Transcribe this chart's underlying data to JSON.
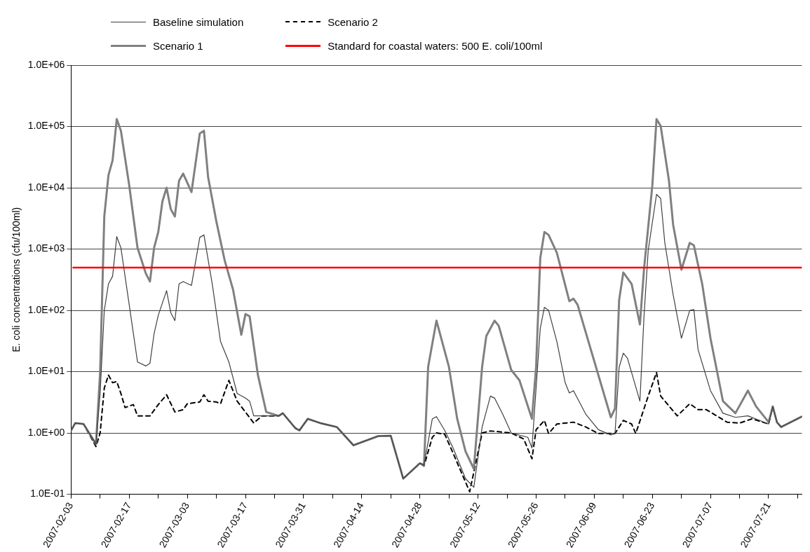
{
  "chart_data": {
    "type": "line",
    "ylabel": "E. coli concentrations (cfu/100ml)",
    "log": "y",
    "grid": "y",
    "legend": "top",
    "marker": "none",
    "xlim": [
      "2007-02-03",
      "2007-07-29"
    ],
    "xticks": [
      "2007-02-03",
      {
        "value": "2007-02-10",
        "label": null
      },
      "2007-02-17",
      {
        "value": "2007-02-24",
        "label": null
      },
      "2007-03-03",
      {
        "value": "2007-03-10",
        "label": null
      },
      "2007-03-17",
      {
        "value": "2007-03-24",
        "label": null
      },
      "2007-03-31",
      {
        "value": "2007-04-07",
        "label": null
      },
      "2007-04-14",
      {
        "value": "2007-04-21",
        "label": null
      },
      "2007-04-28",
      {
        "value": "2007-05-05",
        "label": null
      },
      "2007-05-12",
      {
        "value": "2007-05-19",
        "label": null
      },
      "2007-05-26",
      {
        "value": "2007-06-02",
        "label": null
      },
      "2007-06-09",
      {
        "value": "2007-06-16",
        "label": null
      },
      "2007-06-23",
      {
        "value": "2007-06-30",
        "label": null
      },
      "2007-07-07",
      {
        "value": "2007-07-14",
        "label": null
      },
      "2007-07-21",
      {
        "value": "2007-07-28",
        "label": null
      }
    ],
    "ylim": [
      0.1,
      1000000
    ],
    "yticks": [
      {
        "value": 0.1,
        "label": "1.0E-01"
      },
      {
        "value": 1,
        "label": "1.0E+00"
      },
      {
        "value": 10,
        "label": "1.0E+01"
      },
      {
        "value": 100,
        "label": "1.0E+02"
      },
      {
        "value": 1000,
        "label": "1.0E+03"
      },
      {
        "value": 10000,
        "label": "1.0E+04"
      },
      {
        "value": 100000,
        "label": "1.0E+05"
      },
      {
        "value": 1000000,
        "label": "1.0E+06"
      }
    ],
    "ref_lines": [
      {
        "axis": "y",
        "value": 500,
        "label": "Standard for coastal waters: 500 E. coli/100ml",
        "color": "#ff0000"
      }
    ],
    "series": [
      {
        "name": "Baseline simulation",
        "color": "#404040",
        "line_style": "solid",
        "x": [
          "2007-02-03",
          "2007-02-04",
          "2007-02-06",
          "2007-02-09",
          "2007-02-10",
          "2007-02-11",
          "2007-02-12",
          "2007-02-13",
          "2007-02-14",
          "2007-02-15",
          "2007-02-17",
          "2007-02-19",
          "2007-02-21",
          "2007-02-22",
          "2007-02-23",
          "2007-02-24",
          "2007-02-26",
          "2007-02-27",
          "2007-02-28",
          "2007-03-01",
          "2007-03-02",
          "2007-03-04",
          "2007-03-06",
          "2007-03-07",
          "2007-03-09",
          "2007-03-11",
          "2007-03-13",
          "2007-03-15",
          "2007-03-17",
          "2007-03-18",
          "2007-03-19",
          "2007-03-22",
          "2007-03-25",
          "2007-03-26",
          "2007-03-29",
          "2007-03-30",
          "2007-04-01",
          "2007-04-04",
          "2007-04-08",
          "2007-04-12",
          "2007-04-18",
          "2007-04-21",
          "2007-04-24",
          "2007-04-28",
          "2007-04-29",
          "2007-05-01",
          "2007-05-02",
          "2007-05-04",
          "2007-05-06",
          "2007-05-09",
          "2007-05-11",
          "2007-05-13",
          "2007-05-15",
          "2007-05-16",
          "2007-05-18",
          "2007-05-20",
          "2007-05-24",
          "2007-05-25",
          "2007-05-27",
          "2007-05-28",
          "2007-05-29",
          "2007-05-31",
          "2007-06-02",
          "2007-06-03",
          "2007-06-04",
          "2007-06-07",
          "2007-06-10",
          "2007-06-13",
          "2007-06-14",
          "2007-06-15",
          "2007-06-16",
          "2007-06-17",
          "2007-06-20",
          "2007-06-21",
          "2007-06-22",
          "2007-06-24",
          "2007-06-25",
          "2007-06-26",
          "2007-06-28",
          "2007-06-30",
          "2007-07-02",
          "2007-07-03",
          "2007-07-04",
          "2007-07-07",
          "2007-07-10",
          "2007-07-13",
          "2007-07-16",
          "2007-07-21",
          "2007-07-22",
          "2007-07-23",
          "2007-07-24",
          "2007-07-29"
        ],
        "values": [
          1.1,
          1.45,
          1.4,
          0.66,
          4.5,
          100,
          270,
          360,
          1600,
          1050,
          123,
          14.4,
          12.4,
          13.7,
          42,
          83,
          210,
          92,
          68,
          270,
          295,
          255,
          1550,
          1700,
          270,
          31,
          14.4,
          4.4,
          3.7,
          3.3,
          1.9,
          1.9,
          1.9,
          2.1,
          1.2,
          1.1,
          1.7,
          1.45,
          1.25,
          0.63,
          0.89,
          0.9,
          0.18,
          0.32,
          0.3,
          1.7,
          1.85,
          1.1,
          0.57,
          0.18,
          0.13,
          1.25,
          4,
          3.7,
          2,
          1,
          0.85,
          0.57,
          51,
          112,
          100,
          31,
          6.6,
          4.5,
          4.9,
          2,
          1.13,
          0.93,
          0.98,
          11.8,
          20,
          16.6,
          3.3,
          83,
          950,
          7800,
          6700,
          1260,
          180,
          35,
          100,
          103,
          23,
          4.9,
          2.1,
          1.8,
          1.9,
          1.4,
          2.7,
          1.5,
          1.25,
          1.85
        ]
      },
      {
        "name": "Scenario 1",
        "color": "#808080",
        "line_style": "solid",
        "x": [
          "2007-02-03",
          "2007-02-04",
          "2007-02-06",
          "2007-02-09",
          "2007-02-10",
          "2007-02-11",
          "2007-02-12",
          "2007-02-13",
          "2007-02-14",
          "2007-02-15",
          "2007-02-17",
          "2007-02-19",
          "2007-02-21",
          "2007-02-22",
          "2007-02-23",
          "2007-02-24",
          "2007-02-25",
          "2007-02-26",
          "2007-02-27",
          "2007-02-28",
          "2007-03-01",
          "2007-03-02",
          "2007-03-04",
          "2007-03-06",
          "2007-03-07",
          "2007-03-08",
          "2007-03-10",
          "2007-03-12",
          "2007-03-14",
          "2007-03-16",
          "2007-03-17",
          "2007-03-18",
          "2007-03-20",
          "2007-03-22",
          "2007-03-25",
          "2007-03-26",
          "2007-03-29",
          "2007-03-30",
          "2007-04-01",
          "2007-04-04",
          "2007-04-08",
          "2007-04-12",
          "2007-04-18",
          "2007-04-21",
          "2007-04-24",
          "2007-04-28",
          "2007-04-29",
          "2007-04-30",
          "2007-05-02",
          "2007-05-05",
          "2007-05-07",
          "2007-05-09",
          "2007-05-11",
          "2007-05-13",
          "2007-05-14",
          "2007-05-16",
          "2007-05-17",
          "2007-05-20",
          "2007-05-22",
          "2007-05-25",
          "2007-05-26",
          "2007-05-27",
          "2007-05-28",
          "2007-05-29",
          "2007-05-31",
          "2007-06-03",
          "2007-06-04",
          "2007-06-05",
          "2007-06-13",
          "2007-06-14",
          "2007-06-15",
          "2007-06-16",
          "2007-06-18",
          "2007-06-20",
          "2007-06-21",
          "2007-06-23",
          "2007-06-24",
          "2007-06-25",
          "2007-06-27",
          "2007-06-28",
          "2007-06-30",
          "2007-07-02",
          "2007-07-03",
          "2007-07-05",
          "2007-07-07",
          "2007-07-10",
          "2007-07-13",
          "2007-07-16",
          "2007-07-18",
          "2007-07-21",
          "2007-07-22",
          "2007-07-23",
          "2007-07-24",
          "2007-07-29"
        ],
        "values": [
          1.1,
          1.45,
          1.4,
          0.66,
          10,
          3400,
          16000,
          28000,
          132000,
          85000,
          11000,
          1050,
          400,
          295,
          1050,
          1900,
          6000,
          10000,
          4500,
          3400,
          13000,
          17000,
          8500,
          77000,
          85000,
          15000,
          2800,
          650,
          220,
          40,
          87,
          80,
          8.8,
          2.2,
          1.9,
          2.1,
          1.2,
          1.1,
          1.7,
          1.45,
          1.25,
          0.63,
          0.89,
          0.9,
          0.18,
          0.32,
          0.3,
          12,
          68,
          12,
          1.7,
          0.5,
          0.26,
          12,
          38,
          68,
          56,
          10.7,
          7.2,
          1.7,
          12,
          710,
          1900,
          1700,
          870,
          141,
          155,
          123,
          1.8,
          2.5,
          148,
          415,
          270,
          59,
          480,
          11000,
          132000,
          102000,
          13000,
          2500,
          460,
          1260,
          1150,
          270,
          35,
          3.3,
          2.1,
          4.9,
          2.7,
          1.5,
          2.7,
          1.5,
          1.25,
          1.85
        ]
      },
      {
        "name": "Scenario 2",
        "color": "#000000",
        "line_style": "dashed",
        "x": [
          "2007-02-03",
          "2007-02-04",
          "2007-02-06",
          "2007-02-09",
          "2007-02-10",
          "2007-02-11",
          "2007-02-12",
          "2007-02-13",
          "2007-02-14",
          "2007-02-15",
          "2007-02-16",
          "2007-02-18",
          "2007-02-19",
          "2007-02-22",
          "2007-02-24",
          "2007-02-26",
          "2007-02-28",
          "2007-03-02",
          "2007-03-03",
          "2007-03-06",
          "2007-03-07",
          "2007-03-08",
          "2007-03-10",
          "2007-03-11",
          "2007-03-13",
          "2007-03-15",
          "2007-03-19",
          "2007-03-21",
          "2007-03-25",
          "2007-03-26",
          "2007-03-29",
          "2007-03-30",
          "2007-04-01",
          "2007-04-04",
          "2007-04-08",
          "2007-04-12",
          "2007-04-18",
          "2007-04-21",
          "2007-04-24",
          "2007-04-28",
          "2007-04-29",
          "2007-05-01",
          "2007-05-02",
          "2007-05-04",
          "2007-05-06",
          "2007-05-10",
          "2007-05-13",
          "2007-05-15",
          "2007-05-20",
          "2007-05-23",
          "2007-05-25",
          "2007-05-26",
          "2007-05-28",
          "2007-05-29",
          "2007-05-31",
          "2007-06-04",
          "2007-06-07",
          "2007-06-10",
          "2007-06-14",
          "2007-06-16",
          "2007-06-18",
          "2007-06-19",
          "2007-06-22",
          "2007-06-24",
          "2007-06-25",
          "2007-06-29",
          "2007-07-02",
          "2007-07-04",
          "2007-07-06",
          "2007-07-11",
          "2007-07-14",
          "2007-07-17",
          "2007-07-21",
          "2007-07-22",
          "2007-07-23",
          "2007-07-24",
          "2007-07-29"
        ],
        "values": [
          1.1,
          1.45,
          1.4,
          0.6,
          1,
          5.4,
          8.8,
          6.6,
          6.9,
          4.4,
          2.6,
          2.9,
          1.9,
          1.9,
          2.9,
          4.2,
          2.2,
          2.4,
          3,
          3.2,
          4.2,
          3.3,
          3.2,
          3,
          7.2,
          3.3,
          1.45,
          1.9,
          1.9,
          2.1,
          1.2,
          1.1,
          1.7,
          1.45,
          1.25,
          0.63,
          0.89,
          0.9,
          0.18,
          0.32,
          0.29,
          0.85,
          1,
          0.95,
          0.47,
          0.11,
          1,
          1.08,
          1,
          0.8,
          0.38,
          1.13,
          1.6,
          0.98,
          1.4,
          1.5,
          1.25,
          0.98,
          0.98,
          1.6,
          1.4,
          0.98,
          4,
          9.7,
          4,
          1.9,
          3,
          2.4,
          2.4,
          1.5,
          1.45,
          1.7,
          1.4,
          2.7,
          1.5,
          1.25,
          1.85
        ]
      }
    ]
  }
}
